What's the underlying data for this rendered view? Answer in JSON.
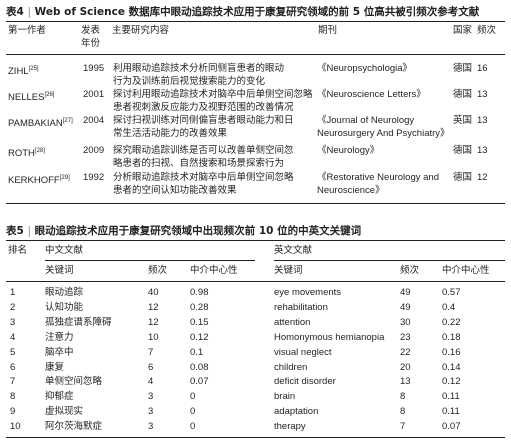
{
  "table4": {
    "label": "表4",
    "sep": "|",
    "title": "Web of Science 数据库中眼动追踪技术应用于康复研究领域的前 5 位高共被引频次参考文献",
    "headers": {
      "author": "第一作者",
      "year_line1": "发表",
      "year_line2": "年份",
      "content": "主要研究内容",
      "journal": "期刊",
      "country": "国家",
      "freq": "频次"
    },
    "rows": [
      {
        "author": "ZIHL",
        "ref": "[25]",
        "year": "1995",
        "content1": "利用眼动追踪技术分析同侧盲患者的眼动",
        "content2": "行为及训练前后视觉搜索能力的变化",
        "journal1": "《Neuropsychologia》",
        "journal2": "",
        "country": "德国",
        "freq": "16"
      },
      {
        "author": "NELLES",
        "ref": "[26]",
        "year": "2001",
        "content1": "探讨利用眼动追踪技术对脑卒中后单侧空间忽略",
        "content2": "患者视刺激反应能力及视野范围的改善情况",
        "journal1": "《Neuroscience Letters》",
        "journal2": "",
        "country": "德国",
        "freq": "13"
      },
      {
        "author": "PAMBAKIAN",
        "ref": "[27]",
        "year": "2004",
        "content1": "探讨扫视训练对同侧偏盲患者眼动能力和日",
        "content2": "常生活活动能力的改善效果",
        "journal1": "《Journal of Neurology",
        "journal2": "Neurosurgery And Psychiatry》",
        "country": "英国",
        "freq": "13"
      },
      {
        "author": "ROTH",
        "ref": "[28]",
        "year": "2009",
        "content1": "探究眼动追踪训练是否可以改善单侧空间忽",
        "content2": "略患者的扫视、自然搜索和场景探索行为",
        "journal1": "《Neurology》",
        "journal2": "",
        "country": "德国",
        "freq": "13"
      },
      {
        "author": "KERKHOFF",
        "ref": "[29]",
        "year": "1992",
        "content1": "分析眼动追踪技术对脑卒中后单侧空间忽略",
        "content2": "患者的空间认知功能改善效果",
        "journal1": "《Restorative Neurology and",
        "journal2": "Neuroscience》",
        "country": "德国",
        "freq": "12"
      }
    ]
  },
  "table5": {
    "label": "表5",
    "sep": "|",
    "title": "眼动追踪技术应用于康复研究领域中出现频次前 10 位的中英文关键词",
    "headers": {
      "rank": "排名",
      "cn_group": "中文文献",
      "en_group": "英文文献",
      "keyword": "关键词",
      "freq": "频次",
      "centrality": "中介中心性",
      "en_keyword": "关键词",
      "en_freq": "频次",
      "en_centrality": "中介中心性"
    },
    "rows": [
      {
        "rank": "1",
        "cn": "眼动追踪",
        "cn_freq": "40",
        "cn_cent": "0.98",
        "en": "eye movements",
        "en_freq": "49",
        "en_cent": "0.57"
      },
      {
        "rank": "2",
        "cn": "认知功能",
        "cn_freq": "12",
        "cn_cent": "0.28",
        "en": "rehabilitation",
        "en_freq": "49",
        "en_cent": "0.4"
      },
      {
        "rank": "3",
        "cn": "孤独症谱系障碍",
        "cn_freq": "12",
        "cn_cent": "0.15",
        "en": "attention",
        "en_freq": "30",
        "en_cent": "0.22"
      },
      {
        "rank": "4",
        "cn": "注意力",
        "cn_freq": "10",
        "cn_cent": "0.12",
        "en": "Homonymous hemianopia",
        "en_freq": "23",
        "en_cent": "0.18"
      },
      {
        "rank": "5",
        "cn": "脑卒中",
        "cn_freq": "7",
        "cn_cent": "0.1",
        "en": "visual neglect",
        "en_freq": "22",
        "en_cent": "0.16"
      },
      {
        "rank": "6",
        "cn": "康复",
        "cn_freq": "6",
        "cn_cent": "0.08",
        "en": "children",
        "en_freq": "20",
        "en_cent": "0.14"
      },
      {
        "rank": "7",
        "cn": "单侧空间忽略",
        "cn_freq": "4",
        "cn_cent": "0.07",
        "en": "deficit disorder",
        "en_freq": "13",
        "en_cent": "0.12"
      },
      {
        "rank": "8",
        "cn": "抑郁症",
        "cn_freq": "3",
        "cn_cent": "0",
        "en": "brain",
        "en_freq": "8",
        "en_cent": "0.11"
      },
      {
        "rank": "9",
        "cn": "虚拟现实",
        "cn_freq": "3",
        "cn_cent": "0",
        "en": "adaptation",
        "en_freq": "8",
        "en_cent": "0.11"
      },
      {
        "rank": "10",
        "cn": "阿尔茨海默症",
        "cn_freq": "3",
        "cn_cent": "0",
        "en": "therapy",
        "en_freq": "7",
        "en_cent": "0.07"
      }
    ]
  }
}
